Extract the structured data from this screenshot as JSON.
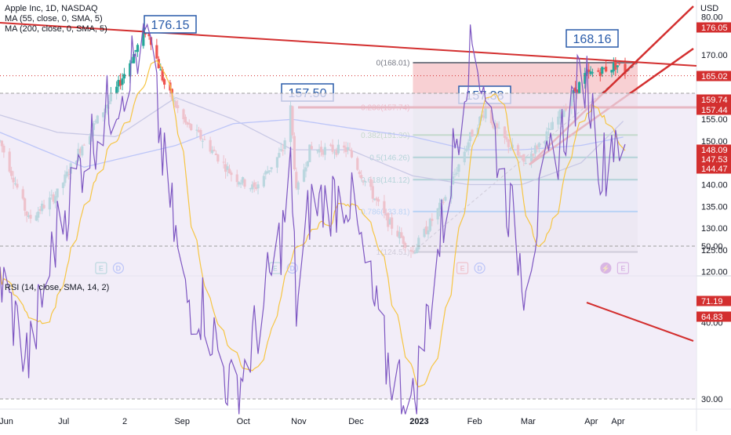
{
  "header": {
    "symbol_line": "Apple Inc, 1D, NASDAQ",
    "ma1_line": "MA (55, close, 0, SMA, 5)",
    "ma2_line": "MA (200, close, 0, SMA, 5)",
    "rsi_line": "RSI (14, close, SMA, 14, 2)",
    "currency": "USD"
  },
  "colors": {
    "up": "#26a69a",
    "down": "#ef5350",
    "ma55": "#5b6fb5",
    "ma200": "#2962ff",
    "annotation": "#d32f2f",
    "callout": "#2a5caa",
    "rsi": "#7e57c2",
    "rsi_ma": "#f6c543",
    "fib_0": "#787b86",
    "fib_236": "#f23645",
    "fib_382": "#4caf50",
    "fib_5": "#089981",
    "fib_618": "#089981",
    "fib_786": "#2196f3",
    "fib_1": "#787b86"
  },
  "chart_data": [
    {
      "type": "candlestick",
      "title": "Apple Inc, 1D, NASDAQ",
      "ylabel": "USD",
      "ylim": [
        120,
        182
      ],
      "y_ticks": [
        120,
        125,
        130,
        135,
        140,
        145,
        150,
        155,
        160,
        165,
        170
      ],
      "y_tick_labels": [
        "120.00",
        "125.00",
        "130.00",
        "135.00",
        "140.00",
        "145.00",
        "150.00",
        "155.00",
        "160.00",
        "165.00",
        "170.00"
      ],
      "x_tick_labels": [
        "Jun",
        "Jul",
        "2",
        "Sep",
        "Oct",
        "Nov",
        "Dec",
        "2023",
        "Feb",
        "Mar",
        "Apr",
        "Apr"
      ],
      "grid": false,
      "price_anchors": [
        [
          "Jun 1",
          150
        ],
        [
          "Jun 16",
          132
        ],
        [
          "Jul 1",
          138
        ],
        [
          "Jul 15",
          150
        ],
        [
          "Aug 1",
          162
        ],
        [
          "Aug 17",
          176.15
        ],
        [
          "Aug 26",
          163
        ],
        [
          "Sep 6",
          154
        ],
        [
          "Sep 16",
          150
        ],
        [
          "Oct 1",
          142
        ],
        [
          "Oct 12",
          139
        ],
        [
          "Oct 27",
          148
        ],
        [
          "Oct 31",
          157.5
        ],
        [
          "Nov 3",
          138
        ],
        [
          "Nov 10",
          148
        ],
        [
          "Nov 30",
          148
        ],
        [
          "Dec 20",
          132
        ],
        [
          "Jan 3",
          124.51
        ],
        [
          "Jan 20",
          137
        ],
        [
          "Feb 2",
          151
        ],
        [
          "Feb 10",
          157.38
        ],
        [
          "Feb 15",
          153
        ],
        [
          "Mar 2",
          145
        ],
        [
          "Mar 15",
          152
        ],
        [
          "Apr 3",
          165
        ],
        [
          "Apr 20",
          167.5
        ],
        [
          "Apr 24",
          166
        ]
      ],
      "series": [
        {
          "name": "MA (55, close, 0, SMA, 5)",
          "anchors": [
            [
              "Jun 1",
              156
            ],
            [
              "Jul 1",
              152
            ],
            [
              "Aug 1",
              151
            ],
            [
              "Sep 1",
              160
            ],
            [
              "Oct 1",
              155
            ],
            [
              "Nov 1",
              148
            ],
            [
              "Dec 1",
              148
            ],
            [
              "Jan 3",
              142
            ],
            [
              "Feb 1",
              140
            ],
            [
              "Mar 1",
              140
            ],
            [
              "Apr 1",
              145
            ],
            [
              "Apr 24",
              155
            ]
          ]
        },
        {
          "name": "MA (200, close, 0, SMA, 5)",
          "anchors": [
            [
              "Jun 1",
              152
            ],
            [
              "Jul 15",
              144
            ],
            [
              "Sep 1",
              149
            ],
            [
              "Oct 1",
              154
            ],
            [
              "Nov 1",
              155
            ],
            [
              "Dec 1",
              153
            ],
            [
              "Jan 3",
              151
            ],
            [
              "Feb 1",
              148
            ],
            [
              "Mar 1",
              148
            ],
            [
              "Apr 1",
              149
            ],
            [
              "Apr 24",
              151
            ]
          ]
        }
      ],
      "fibonacci": [
        {
          "level": 0,
          "price": 168.01,
          "label": "0(168.01)"
        },
        {
          "level": 0.236,
          "price": 157.74,
          "label": "0.236(157.74)"
        },
        {
          "level": 0.382,
          "price": 151.39,
          "label": "0.382(151.39)"
        },
        {
          "level": 0.5,
          "price": 146.26,
          "label": "0.5(146.26)"
        },
        {
          "level": 0.618,
          "price": 141.12,
          "label": "0.618(141.12)"
        },
        {
          "level": 0.786,
          "price": 133.81,
          "label": "0.786(133.81)"
        },
        {
          "level": 1,
          "price": 124.51,
          "label": "1(124.51)"
        }
      ],
      "callouts": [
        "176.15",
        "157.50",
        "157.38",
        "168.16"
      ],
      "price_labels": [
        {
          "value": "176.05",
          "style": "red"
        },
        {
          "value": "170.00",
          "style": "plain"
        },
        {
          "value": "165.02",
          "style": "red"
        },
        {
          "value": "159.74",
          "style": "red"
        },
        {
          "value": "157.44",
          "style": "red"
        },
        {
          "value": "148.09",
          "style": "red"
        },
        {
          "value": "147.53",
          "style": "red"
        },
        {
          "value": "144.47",
          "style": "red"
        }
      ],
      "events": [
        {
          "date": "Jul 28",
          "labels": [
            "E",
            "D"
          ]
        },
        {
          "date": "Oct 27",
          "labels": [
            "E",
            "D"
          ]
        },
        {
          "date": "Feb 2",
          "labels": [
            "E",
            "D"
          ]
        },
        {
          "date": "Apr 18",
          "labels": [
            "⚡",
            "E"
          ]
        }
      ]
    },
    {
      "type": "line",
      "title": "RSI (14, close, SMA, 14, 2)",
      "ylim": [
        27,
        81
      ],
      "y_ticks": [
        30,
        40,
        50,
        60,
        70,
        80
      ],
      "y_tick_labels": [
        "30.00",
        "40.00",
        "50.00",
        "60.00",
        "70.00",
        "80.00"
      ],
      "band": [
        30,
        70
      ],
      "midline": 50,
      "anchors": [
        [
          "Jun 1",
          46
        ],
        [
          "Jun 16",
          35
        ],
        [
          "Jul 1",
          52
        ],
        [
          "Jul 15",
          62
        ],
        [
          "Aug 1",
          70
        ],
        [
          "Aug 17",
          78
        ],
        [
          "Aug 26",
          60
        ],
        [
          "Sep 6",
          43
        ],
        [
          "Sep 16",
          42
        ],
        [
          "Oct 1",
          30
        ],
        [
          "Oct 12",
          38
        ],
        [
          "Oct 27",
          52
        ],
        [
          "Oct 31",
          60
        ],
        [
          "Nov 3",
          42
        ],
        [
          "Nov 10",
          55
        ],
        [
          "Nov 30",
          57
        ],
        [
          "Dec 20",
          35
        ],
        [
          "Jan 3",
          29
        ],
        [
          "Jan 20",
          55
        ],
        [
          "Feb 2",
          77
        ],
        [
          "Feb 10",
          71
        ],
        [
          "Feb 15",
          64
        ],
        [
          "Mar 2",
          46
        ],
        [
          "Mar 15",
          60
        ],
        [
          "Apr 3",
          73
        ],
        [
          "Apr 12",
          60
        ],
        [
          "Apr 20",
          66
        ],
        [
          "Apr 24",
          59
        ]
      ],
      "price_labels": [
        "71.19",
        "64.83"
      ]
    }
  ]
}
